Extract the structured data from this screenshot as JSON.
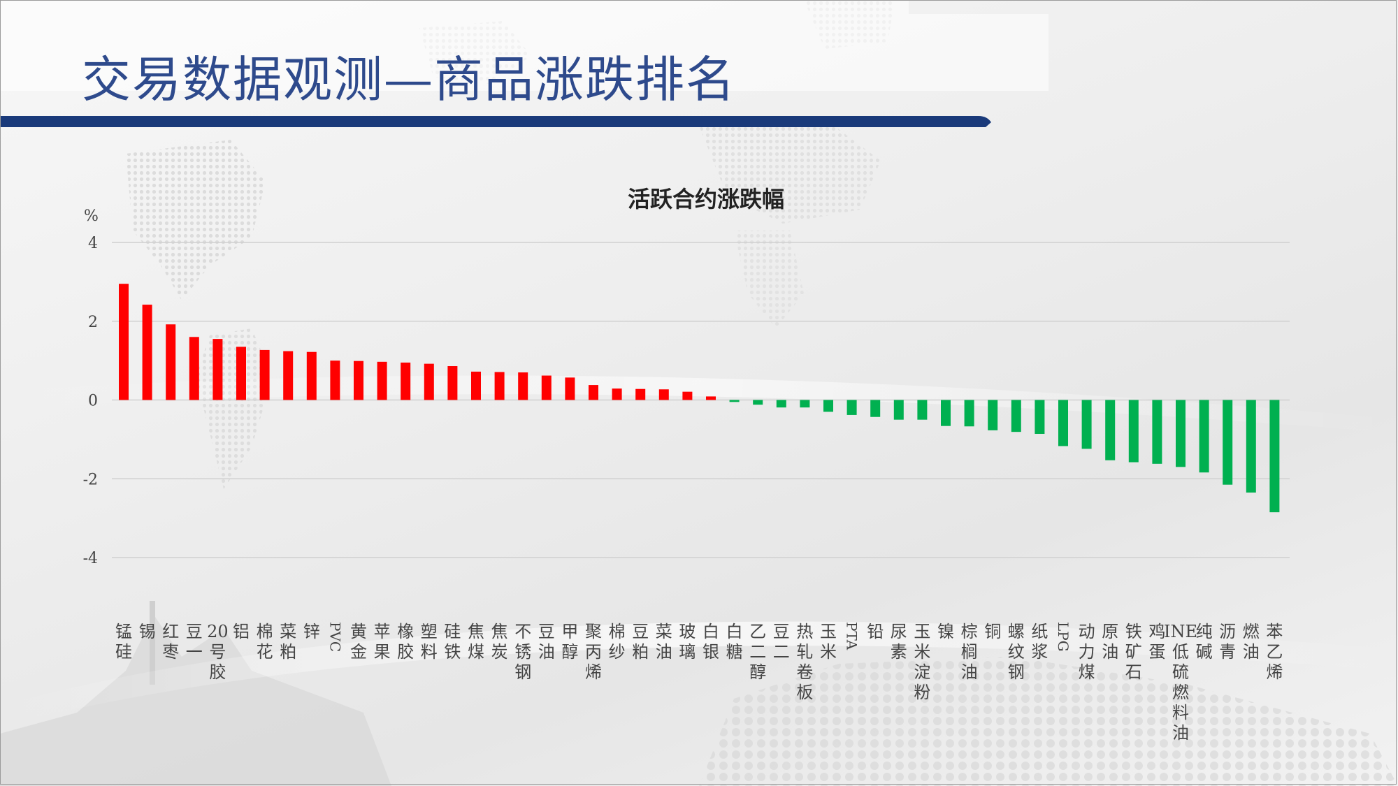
{
  "header": {
    "title": "交易数据观测—商品涨跌排名"
  },
  "colors": {
    "up": "#ff0000",
    "down": "#00b050",
    "header_bar": "#1a3a7a",
    "title": "#2e4a8c"
  },
  "chart_data": {
    "type": "bar",
    "title": "活跃合约涨跌幅",
    "ylabel": "%",
    "ylim": [
      -4,
      4
    ],
    "yticks": [
      4,
      2,
      0,
      -2,
      -4
    ],
    "grid": true,
    "legend": "none",
    "categories": [
      "锰硅",
      "锡",
      "红枣",
      "豆一",
      "20号胶",
      "铝",
      "棉花",
      "菜粕",
      "锌",
      "PVC",
      "黄金",
      "苹果",
      "橡胶",
      "塑料",
      "硅铁",
      "焦煤",
      "焦炭",
      "不锈钢",
      "豆油",
      "甲醇",
      "聚丙烯",
      "棉纱",
      "豆粕",
      "菜油",
      "玻璃",
      "白银",
      "白糖",
      "乙二醇",
      "豆二",
      "热轧卷板",
      "玉米",
      "PTA",
      "铅",
      "尿素",
      "玉米淀粉",
      "镍",
      "棕榈油",
      "铜",
      "螺纹钢",
      "纸浆",
      "LPG",
      "动力煤",
      "原油",
      "铁矿石",
      "鸡蛋",
      "INE低硫燃料油",
      "纯碱",
      "沥青",
      "燃油",
      "苯乙烯"
    ],
    "values": [
      2.95,
      2.42,
      1.92,
      1.6,
      1.55,
      1.35,
      1.27,
      1.24,
      1.22,
      1.0,
      0.99,
      0.97,
      0.95,
      0.92,
      0.86,
      0.72,
      0.71,
      0.7,
      0.62,
      0.57,
      0.38,
      0.29,
      0.28,
      0.27,
      0.21,
      0.09,
      -0.05,
      -0.12,
      -0.19,
      -0.19,
      -0.3,
      -0.38,
      -0.43,
      -0.5,
      -0.5,
      -0.66,
      -0.67,
      -0.77,
      -0.81,
      -0.86,
      -1.17,
      -1.24,
      -1.53,
      -1.58,
      -1.62,
      -1.7,
      -1.84,
      -2.15,
      -2.35,
      -2.85
    ]
  }
}
